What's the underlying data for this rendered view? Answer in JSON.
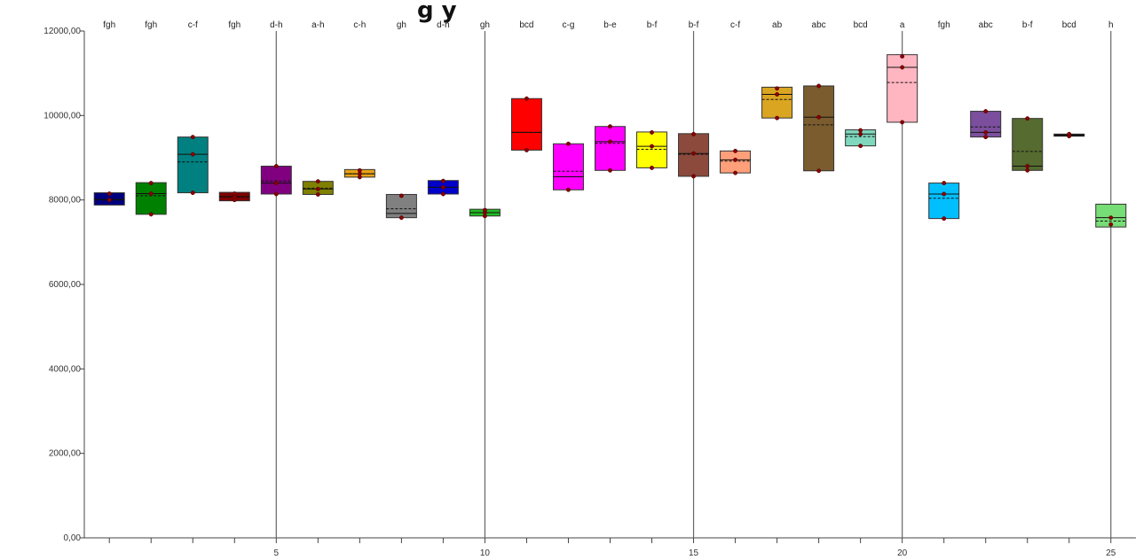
{
  "chart_data": {
    "type": "box",
    "title_fragment": "g  y",
    "xlabel": "",
    "ylabel": "",
    "ylim": [
      0,
      12000
    ],
    "xlim": [
      0.4,
      25.6
    ],
    "y_ticks": [
      0,
      2000,
      4000,
      6000,
      8000,
      10000,
      12000
    ],
    "y_tick_labels": [
      "0,00",
      "2000,00",
      "4000,00",
      "6000,00",
      "8000,00",
      "10000,00",
      "12000,00"
    ],
    "x_tick_labels": [
      "5",
      "10",
      "15",
      "20",
      "25"
    ],
    "x_labeled_positions": [
      5,
      10,
      15,
      20,
      25
    ],
    "separator_positions": [
      5,
      10,
      15,
      20,
      25
    ],
    "grid": false,
    "legend": "none",
    "boxes": [
      {
        "x": 1,
        "letters": "fgh",
        "q1": 7880,
        "q3": 8170,
        "median": 8000,
        "mean": 8020,
        "points": [
          8000,
          8150
        ],
        "color": "#000080"
      },
      {
        "x": 2,
        "letters": "fgh",
        "q1": 7660,
        "q3": 8410,
        "median": 8150,
        "mean": 8100,
        "points": [
          7660,
          8150,
          8400
        ],
        "color": "#008000"
      },
      {
        "x": 3,
        "letters": "c-f",
        "q1": 8170,
        "q3": 9490,
        "median": 9080,
        "mean": 8900,
        "points": [
          8170,
          9080,
          9490
        ],
        "color": "#008080"
      },
      {
        "x": 4,
        "letters": "fgh",
        "q1": 7980,
        "q3": 8180,
        "median": 8080,
        "mean": 8070,
        "points": [
          8000,
          8080,
          8150
        ],
        "color": "#800000"
      },
      {
        "x": 5,
        "letters": "d-h",
        "q1": 8140,
        "q3": 8800,
        "median": 8400,
        "mean": 8450,
        "points": [
          8140,
          8400,
          8800
        ],
        "color": "#800080"
      },
      {
        "x": 6,
        "letters": "a-h",
        "q1": 8130,
        "q3": 8440,
        "median": 8260,
        "mean": 8280,
        "points": [
          8130,
          8260,
          8440
        ],
        "color": "#808000"
      },
      {
        "x": 7,
        "letters": "c-h",
        "q1": 8540,
        "q3": 8720,
        "median": 8620,
        "mean": 8620,
        "points": [
          8540,
          8620,
          8700
        ],
        "color": "#E8A317"
      },
      {
        "x": 8,
        "letters": "gh",
        "q1": 7580,
        "q3": 8130,
        "median": 7680,
        "mean": 7790,
        "points": [
          7580,
          8100
        ],
        "color": "#808080"
      },
      {
        "x": 9,
        "letters": "d-h",
        "q1": 8140,
        "q3": 8460,
        "median": 8300,
        "mean": 8300,
        "points": [
          8140,
          8300,
          8450
        ],
        "color": "#0000CC"
      },
      {
        "x": 10,
        "letters": "gh",
        "q1": 7620,
        "q3": 7780,
        "median": 7700,
        "mean": 7700,
        "points": [
          7620,
          7700,
          7760
        ],
        "color": "#22BB22"
      },
      {
        "x": 11,
        "letters": "bcd",
        "q1": 9180,
        "q3": 10400,
        "median": 9600,
        "mean": 9600,
        "points": [
          9180,
          10400
        ],
        "color": "#FF0000"
      },
      {
        "x": 12,
        "letters": "c-g",
        "q1": 8240,
        "q3": 9330,
        "median": 8550,
        "mean": 8680,
        "points": [
          8240,
          9330
        ],
        "color": "#FF00FF"
      },
      {
        "x": 13,
        "letters": "b-e",
        "q1": 8700,
        "q3": 9740,
        "median": 9380,
        "mean": 9340,
        "points": [
          8700,
          9380,
          9740
        ],
        "color": "#FF00FF"
      },
      {
        "x": 14,
        "letters": "b-f",
        "q1": 8760,
        "q3": 9610,
        "median": 9270,
        "mean": 9200,
        "points": [
          8760,
          9270,
          9600
        ],
        "color": "#FFFF00"
      },
      {
        "x": 15,
        "letters": "b-f",
        "q1": 8560,
        "q3": 9570,
        "median": 9100,
        "mean": 9080,
        "points": [
          8560,
          9100,
          9560
        ],
        "color": "#8B4A3C"
      },
      {
        "x": 16,
        "letters": "c-f",
        "q1": 8640,
        "q3": 9160,
        "median": 8950,
        "mean": 8920,
        "points": [
          8640,
          8950,
          9160
        ],
        "color": "#FFA07A"
      },
      {
        "x": 17,
        "letters": "ab",
        "q1": 9940,
        "q3": 10670,
        "median": 10500,
        "mean": 10380,
        "points": [
          9940,
          10500,
          10640
        ],
        "color": "#DAA520"
      },
      {
        "x": 18,
        "letters": "abc",
        "q1": 8690,
        "q3": 10700,
        "median": 9960,
        "mean": 9780,
        "points": [
          8690,
          9960,
          10700
        ],
        "color": "#7A5C2E"
      },
      {
        "x": 19,
        "letters": "bcd",
        "q1": 9280,
        "q3": 9660,
        "median": 9560,
        "mean": 9500,
        "points": [
          9280,
          9560,
          9650
        ],
        "color": "#7FD8BE"
      },
      {
        "x": 20,
        "letters": "a",
        "q1": 9840,
        "q3": 11440,
        "median": 11140,
        "mean": 10780,
        "points": [
          9840,
          11140,
          11400
        ],
        "color": "#FFB6C1"
      },
      {
        "x": 21,
        "letters": "fgh",
        "q1": 7560,
        "q3": 8400,
        "median": 8140,
        "mean": 8040,
        "points": [
          7560,
          8140,
          8400
        ],
        "color": "#00BFFF"
      },
      {
        "x": 22,
        "letters": "abc",
        "q1": 9490,
        "q3": 10100,
        "median": 9600,
        "mean": 9730,
        "points": [
          9490,
          9600,
          10100
        ],
        "color": "#7B4F9D"
      },
      {
        "x": 23,
        "letters": "b-f",
        "q1": 8700,
        "q3": 9930,
        "median": 8800,
        "mean": 9150,
        "points": [
          8700,
          8800,
          9930
        ],
        "color": "#556B2F"
      },
      {
        "x": 24,
        "letters": "bcd",
        "q1": 9510,
        "q3": 9560,
        "median": 9530,
        "mean": 9530,
        "points": [
          9510,
          9560
        ],
        "color": "#000000"
      },
      {
        "x": 25,
        "letters": "h",
        "q1": 7360,
        "q3": 7900,
        "median": 7580,
        "mean": 7500,
        "points": [
          7420,
          7580
        ],
        "color": "#77DD77"
      }
    ]
  }
}
